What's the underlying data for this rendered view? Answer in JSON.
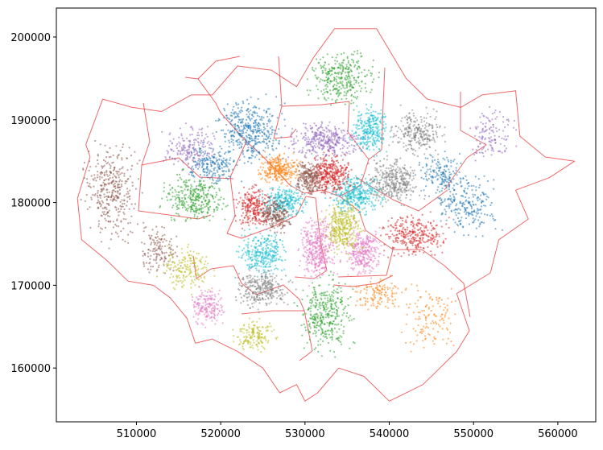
{
  "chart_data": {
    "type": "scatter",
    "title": "",
    "xlabel": "",
    "ylabel": "",
    "xlim": [
      500500,
      564500
    ],
    "ylim": [
      153500,
      203500
    ],
    "grid": false,
    "legend": "none",
    "xticks": [
      {
        "value": 510000,
        "label": "510000"
      },
      {
        "value": 520000,
        "label": "520000"
      },
      {
        "value": 530000,
        "label": "530000"
      },
      {
        "value": 540000,
        "label": "540000"
      },
      {
        "value": 550000,
        "label": "550000"
      },
      {
        "value": 560000,
        "label": "560000"
      }
    ],
    "yticks": [
      {
        "value": 160000,
        "label": "160000"
      },
      {
        "value": 170000,
        "label": "170000"
      },
      {
        "value": 180000,
        "label": "180000"
      },
      {
        "value": 190000,
        "label": "190000"
      },
      {
        "value": 200000,
        "label": "200000"
      }
    ],
    "boundary_color": "#e8292b",
    "outline": [
      [
        504000,
        187000
      ],
      [
        506000,
        192500
      ],
      [
        509500,
        191500
      ],
      [
        513000,
        191000
      ],
      [
        516500,
        193000
      ],
      [
        519000,
        193000
      ],
      [
        522000,
        196500
      ],
      [
        526000,
        196000
      ],
      [
        529000,
        194000
      ],
      [
        531000,
        197500
      ],
      [
        533500,
        201000
      ],
      [
        538500,
        201000
      ],
      [
        542000,
        195000
      ],
      [
        544500,
        192500
      ],
      [
        548500,
        191500
      ],
      [
        551000,
        193000
      ],
      [
        555000,
        193500
      ],
      [
        555500,
        188000
      ],
      [
        558500,
        185500
      ],
      [
        562000,
        185000
      ],
      [
        559000,
        183000
      ],
      [
        555000,
        181500
      ],
      [
        556500,
        178000
      ],
      [
        553000,
        175500
      ],
      [
        552000,
        171500
      ],
      [
        548000,
        169000
      ],
      [
        549500,
        164500
      ],
      [
        548000,
        162000
      ],
      [
        544000,
        158000
      ],
      [
        540000,
        156000
      ],
      [
        537000,
        159000
      ],
      [
        534000,
        160000
      ],
      [
        531500,
        157000
      ],
      [
        530000,
        156000
      ],
      [
        529000,
        158000
      ],
      [
        527000,
        157000
      ],
      [
        525000,
        160000
      ],
      [
        522000,
        162000
      ],
      [
        519000,
        163500
      ],
      [
        517000,
        163000
      ],
      [
        516000,
        166000
      ],
      [
        514000,
        168500
      ],
      [
        512000,
        170000
      ],
      [
        509000,
        170500
      ],
      [
        506500,
        173000
      ],
      [
        503500,
        175500
      ],
      [
        503000,
        180500
      ],
      [
        504500,
        185500
      ]
    ],
    "series": [
      {
        "color": "#8c564b",
        "clusters": [
          [
            507000,
            181500,
            2500,
            4500,
            360
          ],
          [
            512500,
            174000,
            2000,
            2500,
            140
          ]
        ]
      },
      {
        "color": "#9467bd",
        "clusters": [
          [
            516500,
            186500,
            2500,
            2200,
            190
          ],
          [
            532500,
            187500,
            3500,
            1700,
            360
          ],
          [
            552000,
            188500,
            2200,
            2600,
            130
          ]
        ]
      },
      {
        "color": "#1f77b4",
        "clusters": [
          [
            523500,
            188500,
            3000,
            3200,
            420
          ],
          [
            519000,
            184500,
            2400,
            2000,
            200
          ],
          [
            549000,
            180000,
            3000,
            3200,
            240
          ],
          [
            546000,
            183500,
            2000,
            1800,
            150
          ]
        ]
      },
      {
        "color": "#2ca02c",
        "clusters": [
          [
            534500,
            195000,
            3000,
            2800,
            320
          ],
          [
            517000,
            180500,
            3000,
            2200,
            320
          ],
          [
            532500,
            166500,
            2500,
            3500,
            360
          ]
        ]
      },
      {
        "color": "#17becf",
        "clusters": [
          [
            537800,
            188800,
            1800,
            2300,
            280
          ],
          [
            536000,
            181000,
            2500,
            1800,
            360
          ],
          [
            527500,
            180000,
            2000,
            1500,
            280
          ],
          [
            525000,
            174000,
            2300,
            2300,
            300
          ]
        ]
      },
      {
        "color": "#7f7f7f",
        "clusters": [
          [
            543500,
            188500,
            2500,
            2200,
            260
          ],
          [
            540500,
            182500,
            2500,
            2200,
            360
          ],
          [
            525000,
            169500,
            2600,
            1800,
            300
          ]
        ]
      },
      {
        "color": "#ff7f0e",
        "clusters": [
          [
            527000,
            184000,
            2000,
            1500,
            280
          ],
          [
            538500,
            169000,
            2500,
            1500,
            130
          ],
          [
            545000,
            166000,
            3000,
            3000,
            130
          ]
        ]
      },
      {
        "color": "#d62728",
        "clusters": [
          [
            533000,
            183500,
            2000,
            2000,
            360
          ],
          [
            524000,
            179500,
            1800,
            2000,
            260
          ],
          [
            543000,
            176000,
            3000,
            2000,
            300
          ]
        ]
      },
      {
        "color": "#8c564b",
        "clusters": [
          [
            530500,
            183000,
            1300,
            1800,
            240
          ],
          [
            526500,
            178500,
            1500,
            1700,
            220
          ]
        ]
      },
      {
        "color": "#e377c2",
        "clusters": [
          [
            531500,
            174500,
            1600,
            3000,
            380
          ],
          [
            537000,
            174000,
            2000,
            2300,
            300
          ],
          [
            518500,
            167500,
            1500,
            1800,
            180
          ]
        ]
      },
      {
        "color": "#bcbd22",
        "clusters": [
          [
            534500,
            177000,
            1800,
            2500,
            340
          ],
          [
            516000,
            172000,
            2500,
            2200,
            180
          ],
          [
            524000,
            164000,
            2000,
            1500,
            160
          ]
        ]
      }
    ]
  }
}
